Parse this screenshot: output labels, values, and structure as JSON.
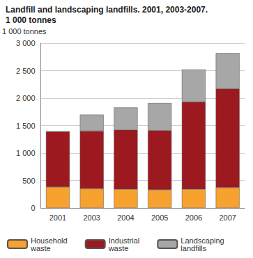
{
  "chart_data": {
    "type": "bar",
    "title": "Landfill and landscaping landfills. 2001, 2003-2007.",
    "subtitle": "1 000 tonnes",
    "y_label": "1 000 tonnes",
    "categories": [
      "2001",
      "2003",
      "2004",
      "2005",
      "2006",
      "2007"
    ],
    "series": [
      {
        "name": "Household waste",
        "color": "#f7a12f",
        "values": [
          380,
          350,
          340,
          330,
          340,
          370
        ]
      },
      {
        "name": "Industrial waste",
        "color": "#9c1a1f",
        "values": [
          1010,
          1050,
          1080,
          1080,
          1590,
          1800
        ]
      },
      {
        "name": "Landscaping landfills",
        "color": "#a7a7a7",
        "values": [
          0,
          300,
          410,
          500,
          590,
          650
        ]
      }
    ],
    "ylim": [
      0,
      3000
    ],
    "yticks": [
      0,
      500,
      {
        "value": 1000,
        "label": "1 000"
      },
      {
        "value": 1500,
        "label": "1 500"
      },
      {
        "value": 2000,
        "label": "2 000"
      },
      {
        "value": 2500,
        "label": "2 500"
      },
      {
        "value": 3000,
        "label": "3 000"
      }
    ],
    "stacked": true,
    "grid": true,
    "legend": "bottom"
  }
}
